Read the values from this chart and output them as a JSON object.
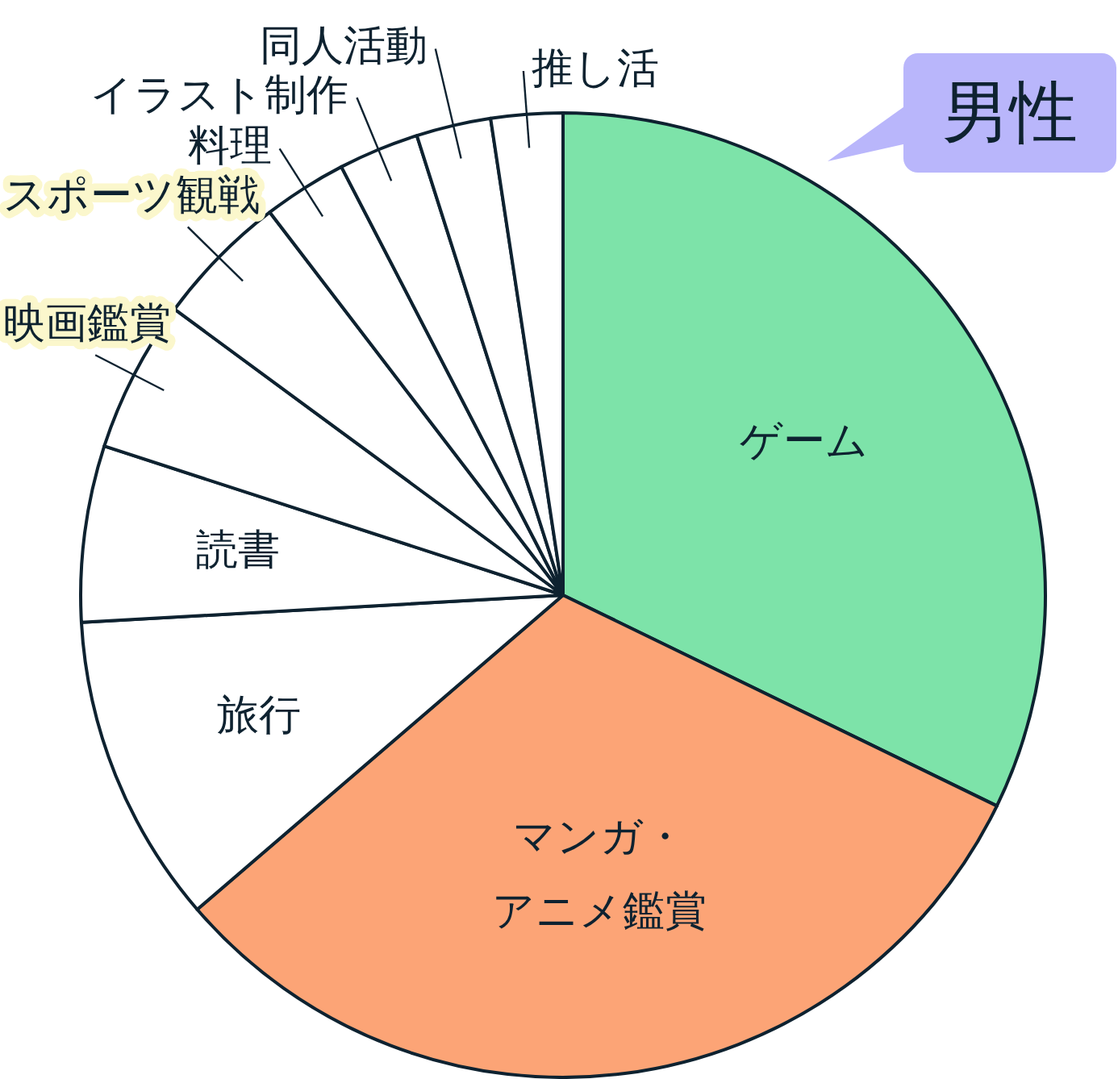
{
  "chart_data": {
    "type": "pie",
    "title": "男性",
    "categories": [
      "ゲーム",
      "マンガ・アニメ鑑賞",
      "旅行",
      "読書",
      "映画鑑賞",
      "スポーツ観戦",
      "料理",
      "イラスト制作",
      "同人活動",
      "推し活"
    ],
    "values": [
      32.2,
      31.5,
      10.4,
      5.9,
      5.1,
      4.5,
      2.8,
      2.7,
      2.5,
      2.4
    ],
    "colors": [
      "#7de3a9",
      "#fca476",
      "#ffffff",
      "#ffffff",
      "#ffffff",
      "#ffffff",
      "#ffffff",
      "#ffffff",
      "#ffffff",
      "#ffffff"
    ]
  }
}
